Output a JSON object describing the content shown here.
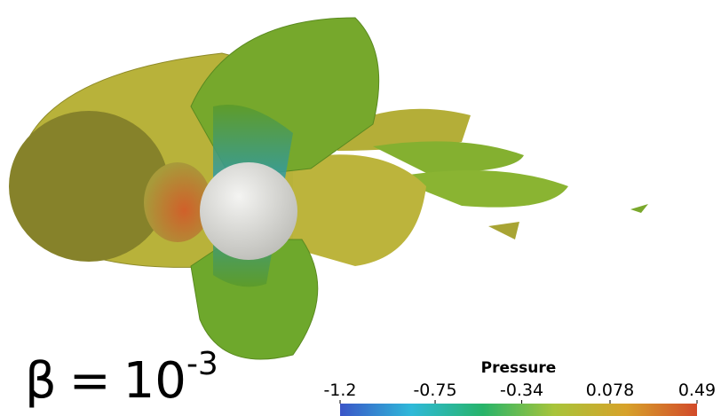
{
  "annotation": {
    "symbol": "β",
    "operator": "=",
    "base": "10",
    "exponent": "-3"
  },
  "colorbar": {
    "title": "Pressure",
    "lim": [
      -1.2,
      0.49
    ],
    "ticks": [
      -1.2,
      -0.75,
      -0.34,
      0.078,
      0.49
    ],
    "colors": [
      "#3a55c8",
      "#2fb9d9",
      "#27b46a",
      "#a8c43a",
      "#d7a22a",
      "#d24a2a"
    ]
  }
}
